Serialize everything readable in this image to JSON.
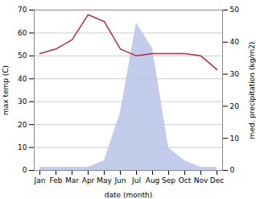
{
  "chart_data": {
    "type": "line",
    "categories": [
      "Jan",
      "Feb",
      "Mar",
      "Apr",
      "May",
      "Jun",
      "Jul",
      "Aug",
      "Sep",
      "Oct",
      "Nov",
      "Dec"
    ],
    "series": [
      {
        "type": "area",
        "color": "#b8c4e8",
        "axis": "y2",
        "values": [
          1,
          1,
          1,
          1,
          3,
          18,
          46,
          38,
          7,
          3,
          1,
          1
        ]
      },
      {
        "type": "line",
        "color": "#b03040",
        "values": [
          51,
          53,
          57,
          68,
          65,
          53,
          50,
          51,
          51,
          51,
          50,
          44
        ]
      }
    ],
    "xlabel": "date (month)",
    "ylabel": "max temp (C)",
    "y2label": "med. precipitation (kg/m2)",
    "ylim": [
      0,
      70
    ],
    "yticks": [
      0,
      10,
      20,
      30,
      40,
      50,
      60,
      70
    ],
    "y2lim": [
      0,
      50
    ],
    "y2ticks": [
      0,
      10,
      20,
      30,
      40,
      50
    ],
    "grid": true
  }
}
